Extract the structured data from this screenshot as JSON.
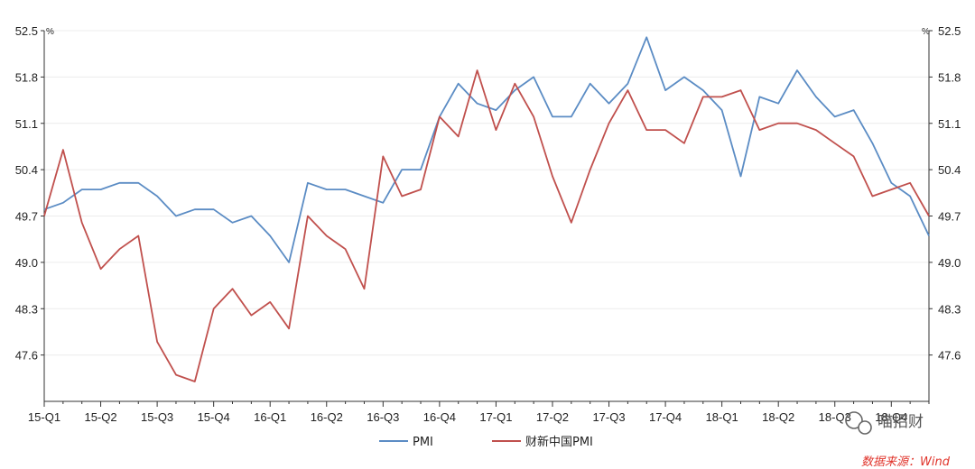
{
  "chart_data": {
    "type": "line",
    "unit_left": "%",
    "unit_right": "%",
    "y_ticks": [
      "47.6",
      "48.3",
      "49.0",
      "49.7",
      "50.4",
      "51.1",
      "51.8",
      "52.5"
    ],
    "ylim": [
      46.9,
      52.5
    ],
    "x_labels": [
      "15-Q1",
      "15-Q2",
      "15-Q3",
      "15-Q4",
      "16-Q1",
      "16-Q2",
      "16-Q3",
      "16-Q4",
      "17-Q1",
      "17-Q2",
      "17-Q3",
      "17-Q4",
      "18-Q1",
      "18-Q2",
      "18-Q3",
      "18-Q4"
    ],
    "legend_position": "bottom",
    "grid": true,
    "series": [
      {
        "name": "PMI",
        "color": "#5b8cc4",
        "values": [
          49.8,
          49.9,
          50.1,
          50.1,
          50.2,
          50.2,
          50.0,
          49.7,
          49.8,
          49.8,
          49.6,
          49.7,
          49.4,
          49.0,
          50.2,
          50.1,
          50.1,
          50.0,
          49.9,
          50.4,
          50.4,
          51.2,
          51.7,
          51.4,
          51.3,
          51.6,
          51.8,
          51.2,
          51.2,
          51.7,
          51.4,
          51.7,
          52.4,
          51.6,
          51.8,
          51.6,
          51.3,
          50.3,
          51.5,
          51.4,
          51.9,
          51.5,
          51.2,
          51.3,
          50.8,
          50.2,
          50.0,
          49.4
        ]
      },
      {
        "name": "财新中国PMI",
        "color": "#c0504d",
        "values": [
          49.7,
          50.7,
          49.6,
          48.9,
          49.2,
          49.4,
          47.8,
          47.3,
          47.2,
          48.3,
          48.6,
          48.2,
          48.4,
          48.0,
          49.7,
          49.4,
          49.2,
          48.6,
          50.6,
          50.0,
          50.1,
          51.2,
          50.9,
          51.9,
          51.0,
          51.7,
          51.2,
          50.3,
          49.6,
          50.4,
          51.1,
          51.6,
          51.0,
          51.0,
          50.8,
          51.5,
          51.5,
          51.6,
          51.0,
          51.1,
          51.1,
          51.0,
          50.8,
          50.6,
          50.0,
          50.1,
          50.2,
          49.7
        ]
      }
    ]
  },
  "source": "数据来源：Wind",
  "watermark": "喵招财"
}
